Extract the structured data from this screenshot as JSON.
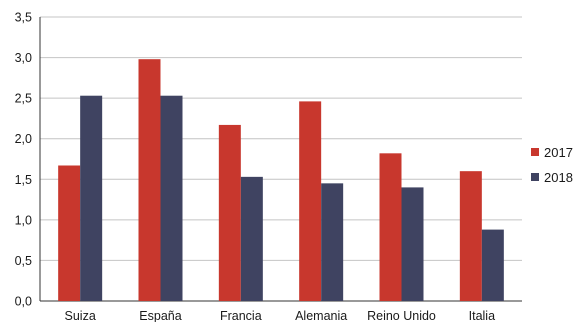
{
  "chart_data": {
    "type": "bar",
    "categories": [
      "Suiza",
      "España",
      "Francia",
      "Alemania",
      "Reino Unido",
      "Italia"
    ],
    "series": [
      {
        "name": "2017",
        "color": "#c8372d",
        "values": [
          1.67,
          2.98,
          2.17,
          2.46,
          1.82,
          1.6
        ]
      },
      {
        "name": "2018",
        "color": "#3f4361",
        "values": [
          2.53,
          2.53,
          1.53,
          1.45,
          1.4,
          0.88
        ]
      }
    ],
    "y_ticks": [
      "0,0",
      "0,5",
      "1,0",
      "1,5",
      "2,0",
      "2,5",
      "3,0",
      "3,5"
    ],
    "ylim": [
      0,
      3.5
    ],
    "grid": true,
    "legend_position": "right",
    "title": "",
    "xlabel": "",
    "ylabel": ""
  }
}
